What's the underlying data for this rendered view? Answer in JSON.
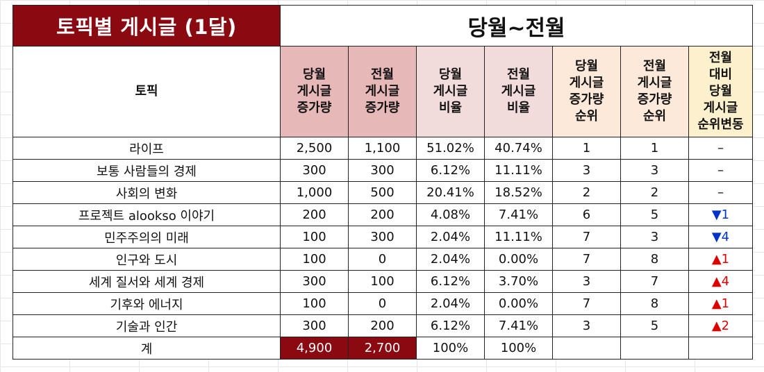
{
  "sheet": {
    "title": "토픽별 게시글 (1달)",
    "period": "당월~전월",
    "headers": {
      "topic": "토픽",
      "cur_increase": [
        "당월",
        "게시글",
        "증가량"
      ],
      "prev_increase": [
        "전월",
        "게시글",
        "증가량"
      ],
      "cur_ratio": [
        "당월",
        "게시글",
        "비율"
      ],
      "prev_ratio": [
        "전월",
        "게시글",
        "비율"
      ],
      "cur_rank": [
        "당월",
        "게시글",
        "증가량",
        "순위"
      ],
      "prev_rank": [
        "전월",
        "게시글",
        "증가량",
        "순위"
      ],
      "rank_change": [
        "전월",
        "대비",
        "당월",
        "게시글",
        "순위변동"
      ]
    },
    "rows": [
      {
        "topic": "라이프",
        "cur": "2,500",
        "prev": "1,100",
        "cur_ratio": "51.02%",
        "prev_ratio": "40.74%",
        "cur_rank": "1",
        "prev_rank": "1",
        "change": "–",
        "dir": "none"
      },
      {
        "topic": "보통 사람들의 경제",
        "cur": "300",
        "prev": "300",
        "cur_ratio": "6.12%",
        "prev_ratio": "11.11%",
        "cur_rank": "3",
        "prev_rank": "3",
        "change": "–",
        "dir": "none"
      },
      {
        "topic": "사회의 변화",
        "cur": "1,000",
        "prev": "500",
        "cur_ratio": "20.41%",
        "prev_ratio": "18.52%",
        "cur_rank": "2",
        "prev_rank": "2",
        "change": "–",
        "dir": "none"
      },
      {
        "topic": "프로젝트 alookso 이야기",
        "cur": "200",
        "prev": "200",
        "cur_ratio": "4.08%",
        "prev_ratio": "7.41%",
        "cur_rank": "6",
        "prev_rank": "5",
        "change": "▼1",
        "dir": "down"
      },
      {
        "topic": "민주주의의 미래",
        "cur": "100",
        "prev": "300",
        "cur_ratio": "2.04%",
        "prev_ratio": "11.11%",
        "cur_rank": "7",
        "prev_rank": "3",
        "change": "▼4",
        "dir": "down"
      },
      {
        "topic": "인구와 도시",
        "cur": "100",
        "prev": "0",
        "cur_ratio": "2.04%",
        "prev_ratio": "0.00%",
        "cur_rank": "7",
        "prev_rank": "8",
        "change": "▲1",
        "dir": "up"
      },
      {
        "topic": "세계 질서와 세계 경제",
        "cur": "300",
        "prev": "100",
        "cur_ratio": "6.12%",
        "prev_ratio": "3.70%",
        "cur_rank": "3",
        "prev_rank": "7",
        "change": "▲4",
        "dir": "up"
      },
      {
        "topic": "기후와 에너지",
        "cur": "100",
        "prev": "0",
        "cur_ratio": "2.04%",
        "prev_ratio": "0.00%",
        "cur_rank": "7",
        "prev_rank": "8",
        "change": "▲1",
        "dir": "up"
      },
      {
        "topic": "기술과 인간",
        "cur": "300",
        "prev": "200",
        "cur_ratio": "6.12%",
        "prev_ratio": "7.41%",
        "cur_rank": "3",
        "prev_rank": "5",
        "change": "▲2",
        "dir": "up"
      }
    ],
    "total": {
      "label": "계",
      "cur": "4,900",
      "prev": "2,700",
      "cur_ratio": "100%",
      "prev_ratio": "100%"
    },
    "colors": {
      "title_bg": "#8b0a12",
      "header_rose": "#e6b8b7",
      "header_pink": "#f2dcdb",
      "header_peach": "#fde9d9",
      "header_cream": "#fdf0cc",
      "up": "#e00000",
      "down": "#0033cc"
    }
  }
}
